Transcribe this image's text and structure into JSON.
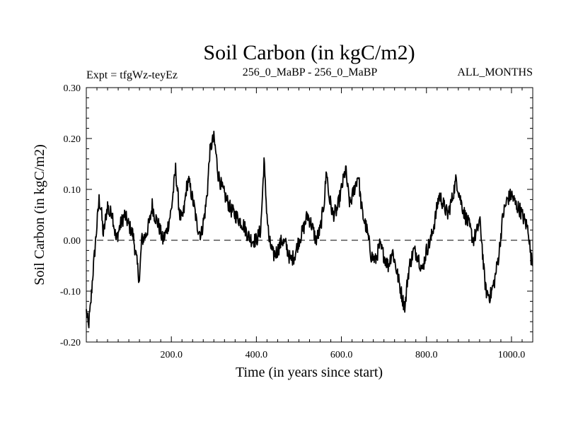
{
  "chart_data": {
    "type": "line",
    "title": "Soil Carbon (in kgC/m2)",
    "subtitle_left": "Expt = tfgWz-teyEz",
    "subtitle_center": "256_0_MaBP - 256_0_MaBP",
    "subtitle_right": "ALL_MONTHS",
    "xlabel": "Time (in years since start)",
    "ylabel": "Soil Carbon (in kgC/m2)",
    "xlim": [
      0,
      1050
    ],
    "ylim": [
      -0.2,
      0.3
    ],
    "x_ticks": [
      {
        "value": 200,
        "label": "200.0"
      },
      {
        "value": 400,
        "label": "400.0"
      },
      {
        "value": 600,
        "label": "600.0"
      },
      {
        "value": 800,
        "label": "800.0"
      },
      {
        "value": 1000,
        "label": "1000.0"
      }
    ],
    "y_ticks": [
      {
        "value": 0.3,
        "label": "0.30"
      },
      {
        "value": 0.2,
        "label": "0.20"
      },
      {
        "value": 0.1,
        "label": "0.10"
      },
      {
        "value": 0.0,
        "label": "0.00"
      },
      {
        "value": -0.1,
        "label": "-0.10"
      },
      {
        "value": -0.2,
        "label": "-0.20"
      }
    ],
    "reference_line": {
      "y": 0.0,
      "style": "dashed"
    },
    "series": [
      {
        "name": "Soil Carbon",
        "color": "#000000",
        "x": [
          0,
          5,
          10,
          15,
          20,
          25,
          30,
          35,
          40,
          45,
          50,
          55,
          60,
          65,
          70,
          80,
          90,
          100,
          110,
          115,
          120,
          125,
          130,
          140,
          150,
          155,
          160,
          170,
          180,
          190,
          200,
          205,
          210,
          215,
          220,
          225,
          230,
          235,
          240,
          250,
          255,
          260,
          270,
          280,
          285,
          290,
          295,
          300,
          305,
          310,
          320,
          330,
          340,
          350,
          360,
          370,
          380,
          390,
          400,
          410,
          415,
          418,
          420,
          425,
          430,
          440,
          450,
          460,
          470,
          480,
          490,
          500,
          510,
          520,
          530,
          540,
          550,
          560,
          565,
          570,
          580,
          590,
          600,
          610,
          615,
          620,
          630,
          640,
          645,
          650,
          660,
          670,
          680,
          690,
          700,
          710,
          720,
          730,
          740,
          745,
          750,
          755,
          760,
          770,
          780,
          790,
          800,
          810,
          820,
          830,
          840,
          850,
          860,
          870,
          880,
          890,
          900,
          910,
          920,
          925,
          930,
          935,
          940,
          950,
          960,
          970,
          980,
          990,
          1000,
          1010,
          1020,
          1030,
          1040,
          1045,
          1050
        ],
        "values": [
          -0.14,
          -0.17,
          -0.13,
          -0.07,
          -0.02,
          0.03,
          0.08,
          0.06,
          0.01,
          0.04,
          0.07,
          0.05,
          0.06,
          0.03,
          0.0,
          0.03,
          0.05,
          0.03,
          0.01,
          -0.02,
          -0.05,
          -0.08,
          0.0,
          0.01,
          0.04,
          0.07,
          0.05,
          0.03,
          0.0,
          0.02,
          0.06,
          0.1,
          0.14,
          0.09,
          0.05,
          0.04,
          0.06,
          0.1,
          0.12,
          0.08,
          0.06,
          0.03,
          0.01,
          0.06,
          0.1,
          0.17,
          0.19,
          0.2,
          0.17,
          0.13,
          0.1,
          0.08,
          0.06,
          0.05,
          0.04,
          0.03,
          0.01,
          0.0,
          0.0,
          0.02,
          0.1,
          0.16,
          0.12,
          0.05,
          0.0,
          -0.03,
          -0.02,
          0.0,
          -0.01,
          -0.04,
          -0.03,
          0.0,
          0.02,
          0.05,
          0.03,
          0.0,
          0.02,
          0.08,
          0.14,
          0.09,
          0.05,
          0.06,
          0.1,
          0.14,
          0.1,
          0.07,
          0.1,
          0.13,
          0.08,
          0.05,
          0.02,
          -0.03,
          -0.04,
          -0.01,
          -0.03,
          -0.05,
          -0.02,
          -0.06,
          -0.1,
          -0.12,
          -0.13,
          -0.08,
          -0.05,
          -0.02,
          -0.03,
          -0.06,
          -0.02,
          0.0,
          0.04,
          0.09,
          0.07,
          0.05,
          0.08,
          0.12,
          0.08,
          0.05,
          0.03,
          0.0,
          0.02,
          0.04,
          0.0,
          -0.06,
          -0.1,
          -0.11,
          -0.08,
          -0.03,
          0.05,
          0.08,
          0.09,
          0.07,
          0.06,
          0.04,
          0.02,
          -0.03,
          -0.05
        ]
      }
    ]
  }
}
